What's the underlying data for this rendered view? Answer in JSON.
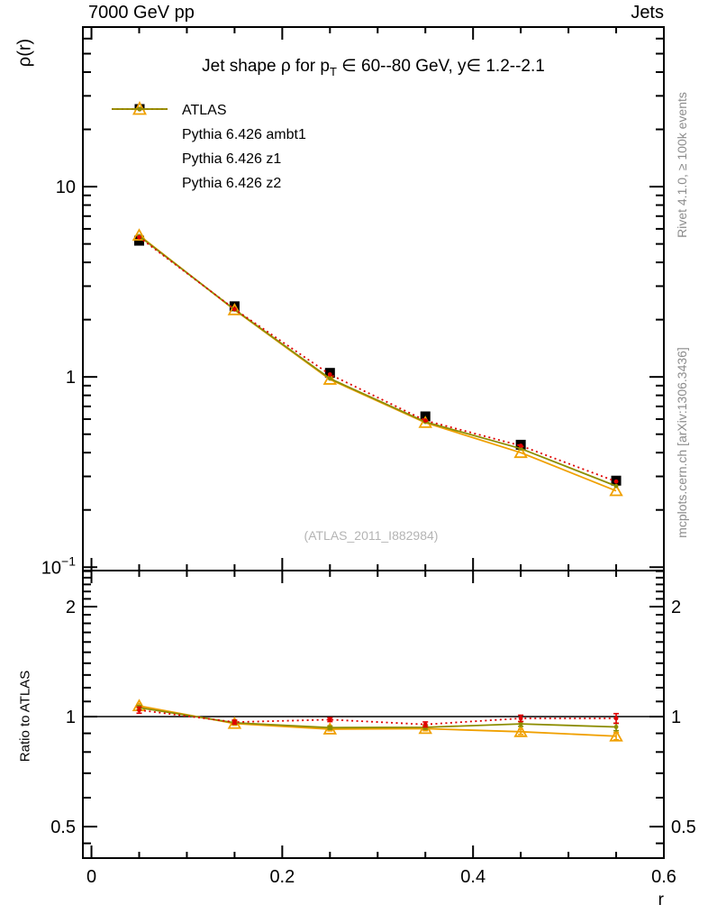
{
  "header": {
    "left_label": "7000 GeV pp",
    "right_label": "Jets"
  },
  "titles": {
    "plot_title_before_sub": "Jet shape ρ for p",
    "plot_title_sub": "T",
    "plot_title_after_sub": " ∈ 60--80 GeV, y∈ 1.2--2.1",
    "y_axis_label": "ρ(r)",
    "x_axis_label": "r",
    "ratio_axis_label": "Ratio to ATLAS",
    "watermark": "(ATLAS_2011_I882984)",
    "side_text_top": "Rivet 4.1.0, ≥ 100k events",
    "side_text_bottom": "mcplots.cern.ch [arXiv:1306.3436]"
  },
  "colors": {
    "atlas": "#000000",
    "ambt1": "#f0a000",
    "z1": "#e00000",
    "z2": "#8d8d00",
    "frame": "#000000",
    "gray_text": "#8c8c8c",
    "watermark": "#b4b4b4"
  },
  "legend": {
    "entries": [
      {
        "label": "ATLAS",
        "marker": "filled-square",
        "line": "none",
        "color": "#000000"
      },
      {
        "label": "Pythia 6.426 ambt1",
        "marker": "open-triangle",
        "line": "solid",
        "color": "#f0a000"
      },
      {
        "label": "Pythia 6.426 z1",
        "marker": "dot",
        "line": "dotted",
        "color": "#e00000"
      },
      {
        "label": "Pythia 6.426 z2",
        "marker": "dot",
        "line": "solid",
        "color": "#8d8d00"
      }
    ]
  },
  "chart_data": {
    "type": "line",
    "title": "Jet shape ρ for pT ∈ 60--80 GeV, y ∈ 1.2--2.1",
    "xlabel": "r",
    "ylabel": "ρ(r)",
    "x": [
      0.05,
      0.15,
      0.25,
      0.35,
      0.45,
      0.55
    ],
    "x_range": [
      -0.009,
      0.6
    ],
    "x_major_ticks": [
      0,
      0.2,
      0.4,
      0.6
    ],
    "x_tick_labels": [
      "0",
      "0.2",
      "0.4",
      "0.6"
    ],
    "x_minor_step": 0.05,
    "main_panel": {
      "yscale": "log",
      "y_range": [
        0.096,
        69
      ],
      "y_major_ticks": [
        10,
        1,
        0.1
      ],
      "y_tick_labels": [
        {
          "text": "10"
        },
        {
          "text": "1"
        },
        {
          "text": "10",
          "sup": "−1"
        }
      ],
      "series": [
        {
          "name": "ATLAS",
          "marker": "filled-square",
          "line": "none",
          "color": "#000000",
          "values": [
            5.2,
            2.35,
            1.05,
            0.62,
            0.44,
            0.285
          ]
        },
        {
          "name": "Pythia 6.426 ambt1",
          "marker": "open-triangle",
          "line": "solid",
          "color": "#f0a000",
          "values": [
            5.55,
            2.25,
            0.97,
            0.575,
            0.4,
            0.252
          ]
        },
        {
          "name": "Pythia 6.426 z2",
          "marker": "dot",
          "line": "solid",
          "color": "#8d8d00",
          "values": [
            5.5,
            2.26,
            0.98,
            0.58,
            0.42,
            0.267
          ]
        },
        {
          "name": "Pythia 6.426 z1",
          "marker": "dot",
          "line": "dotted",
          "color": "#e00000",
          "values": [
            5.42,
            2.27,
            1.03,
            0.59,
            0.435,
            0.282
          ]
        }
      ]
    },
    "ratio_panel": {
      "label": "Ratio to ATLAS",
      "yscale": "log",
      "y_range": [
        0.41,
        2.51
      ],
      "y_major_ticks": [
        2,
        1,
        0.5
      ],
      "y_tick_labels": [
        "2",
        "1",
        "0.5"
      ],
      "reference_line": 1.0,
      "series": [
        {
          "name": "Pythia 6.426 ambt1",
          "marker": "open-triangle",
          "line": "solid",
          "color": "#f0a000",
          "values": [
            1.07,
            0.957,
            0.924,
            0.927,
            0.909,
            0.884
          ],
          "errors": [
            0.015,
            0.01,
            0.01,
            0.012,
            0.015,
            0.02
          ]
        },
        {
          "name": "Pythia 6.426 z2",
          "marker": "dot",
          "line": "solid",
          "color": "#8d8d00",
          "values": [
            1.058,
            0.962,
            0.933,
            0.935,
            0.955,
            0.937
          ],
          "errors": [
            0.015,
            0.01,
            0.01,
            0.012,
            0.015,
            0.022
          ]
        },
        {
          "name": "Pythia 6.426 z1",
          "marker": "dot",
          "line": "dotted",
          "color": "#e00000",
          "values": [
            1.042,
            0.966,
            0.981,
            0.952,
            0.989,
            0.989
          ],
          "errors": [
            0.02,
            0.012,
            0.012,
            0.015,
            0.02,
            0.03
          ]
        }
      ]
    }
  }
}
